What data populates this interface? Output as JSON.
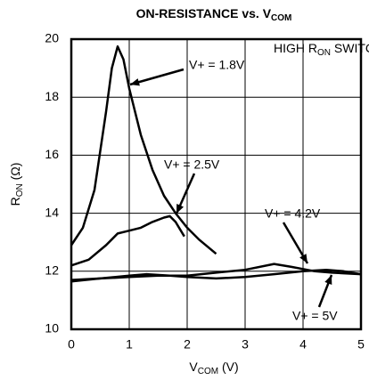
{
  "chart_data": {
    "type": "line",
    "title": [
      "ON-RESISTANCE vs. V",
      "COM"
    ],
    "ylabel": [
      "R",
      "ON",
      " (Ω)"
    ],
    "xlabel": [
      "V",
      "COM",
      " (V)"
    ],
    "annotation": [
      "HIGH R",
      "ON",
      " SWITCH"
    ],
    "xlim": [
      0,
      5
    ],
    "xticks": [
      0,
      1,
      2,
      3,
      4,
      5
    ],
    "ylim": [
      10,
      20
    ],
    "yticks": [
      10,
      12,
      14,
      16,
      18,
      20
    ],
    "grid": true,
    "series": [
      {
        "name": "V+ = 1.8V",
        "color": "#000000",
        "x": [
          0,
          0.2,
          0.4,
          0.6,
          0.7,
          0.8,
          0.9,
          1.0,
          1.2,
          1.4,
          1.6,
          1.8,
          2.0,
          2.2,
          2.5
        ],
        "values": [
          12.9,
          13.5,
          14.8,
          17.5,
          19.0,
          19.75,
          19.3,
          18.3,
          16.7,
          15.5,
          14.6,
          14.0,
          13.5,
          13.1,
          12.6
        ]
      },
      {
        "name": "V+ = 2.5V",
        "color": "#000000",
        "x": [
          0,
          0.3,
          0.6,
          0.8,
          1.0,
          1.2,
          1.4,
          1.6,
          1.7,
          1.8,
          1.95
        ],
        "values": [
          12.2,
          12.4,
          12.9,
          13.3,
          13.4,
          13.5,
          13.7,
          13.85,
          13.9,
          13.7,
          13.2
        ]
      },
      {
        "name": "V+ = 4.2V",
        "color": "#000000",
        "x": [
          0,
          0.5,
          1,
          1.5,
          2,
          2.5,
          3,
          3.5,
          3.8,
          4.2,
          4.5,
          5
        ],
        "values": [
          11.7,
          11.75,
          11.8,
          11.85,
          11.85,
          11.95,
          12.05,
          12.25,
          12.15,
          12.0,
          11.95,
          11.9
        ]
      },
      {
        "name": "V+ = 5V",
        "color": "#000000",
        "x": [
          0,
          0.5,
          1,
          1.3,
          1.7,
          2,
          2.5,
          3,
          3.5,
          4,
          4.4,
          4.7,
          5
        ],
        "values": [
          11.65,
          11.75,
          11.85,
          11.9,
          11.85,
          11.8,
          11.75,
          11.8,
          11.9,
          12.0,
          12.05,
          12.0,
          11.9
        ]
      }
    ]
  }
}
